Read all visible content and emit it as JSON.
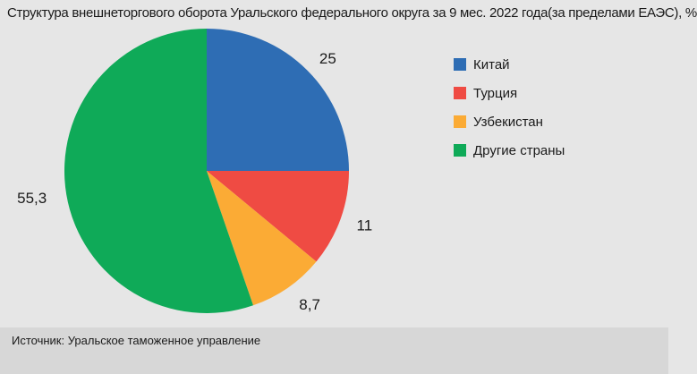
{
  "chart_data": {
    "type": "pie",
    "title": "Структура внешнеторгового оборота Уральского федерального округа за 9 мес. 2022 года(за пределами ЕАЭС), %",
    "categories": [
      "Китай",
      "Турция",
      "Узбекистан",
      "Другие страны"
    ],
    "values": [
      25,
      11,
      8.7,
      55.3
    ],
    "value_labels": [
      "25",
      "11",
      "8,7",
      "55,3"
    ],
    "colors": [
      "#2e6db4",
      "#ef4b43",
      "#fbab35",
      "#0faa58"
    ],
    "legend_position": "right",
    "start_angle": "top, clockwise"
  },
  "source": "Источник: Уральское таможенное управление"
}
